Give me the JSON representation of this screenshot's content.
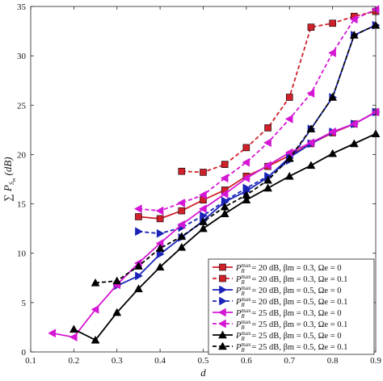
{
  "chart_data": {
    "type": "line",
    "xlabel": "d",
    "ylabel": "∑ P_{S_m} (dB)",
    "xlim": [
      0.1,
      0.9
    ],
    "ylim": [
      0,
      35
    ],
    "xticks": [
      "0.1",
      "0.2",
      "0.3",
      "0.4",
      "0.5",
      "0.6",
      "0.7",
      "0.8",
      "0.9"
    ],
    "yticks": [
      "0",
      "5",
      "10",
      "15",
      "20",
      "25",
      "30",
      "35"
    ],
    "grid": false,
    "legend_position": "bottom-right",
    "series": [
      {
        "name": "P_R^max = 20 dB, β_m = 0.3, Ω_e = 0",
        "color": "#d0202a",
        "line": "solid",
        "marker": "square",
        "x": [
          0.35,
          0.4,
          0.45,
          0.5,
          0.55,
          0.6,
          0.65,
          0.7,
          0.75,
          0.8,
          0.85,
          0.9
        ],
        "y": [
          13.7,
          13.5,
          14.3,
          15.4,
          16.4,
          17.8,
          18.8,
          19.9,
          21.1,
          22.2,
          23.1,
          24.3
        ]
      },
      {
        "name": "P_R^max = 20 dB, β_m = 0.3, Ω_e = 0.1",
        "color": "#d0202a",
        "line": "dashed",
        "marker": "square",
        "x": [
          0.45,
          0.5,
          0.55,
          0.6,
          0.65,
          0.7,
          0.75,
          0.8,
          0.85,
          0.9
        ],
        "y": [
          18.3,
          18.2,
          19.0,
          20.7,
          22.7,
          25.8,
          32.9,
          33.3,
          34.0,
          34.5
        ]
      },
      {
        "name": "P_R^max = 20 dB, β_m = 0.5, Ω_e = 0",
        "color": "#1a22b8",
        "line": "solid",
        "marker": "triangle-right",
        "x": [
          0.3,
          0.35,
          0.4,
          0.45,
          0.5,
          0.55,
          0.6,
          0.65,
          0.7,
          0.75,
          0.8,
          0.85,
          0.9
        ],
        "y": [
          6.7,
          7.7,
          9.9,
          11.6,
          13.3,
          15.2,
          16.3,
          17.7,
          19.7,
          21.1,
          22.3,
          23.1,
          24.3
        ]
      },
      {
        "name": "P_R^max = 20 dB, β_m = 0.5, Ω_e = 0.1",
        "color": "#1a22b8",
        "line": "dashed",
        "marker": "triangle-right",
        "x": [
          0.35,
          0.4,
          0.45,
          0.5,
          0.55,
          0.6,
          0.65,
          0.7,
          0.75,
          0.8,
          0.85,
          0.9
        ],
        "y": [
          12.2,
          12.0,
          12.6,
          13.8,
          15.3,
          16.6,
          17.8,
          19.4,
          22.6,
          25.8,
          32.1,
          33.1
        ]
      },
      {
        "name": "P_R^max = 25 dB, β_m = 0.3, Ω_e = 0",
        "color": "#d417d4",
        "line": "solid",
        "marker": "triangle-left",
        "x": [
          0.15,
          0.2,
          0.25,
          0.3,
          0.35,
          0.4,
          0.45,
          0.5,
          0.55,
          0.6,
          0.65,
          0.7,
          0.75,
          0.8,
          0.85,
          0.9
        ],
        "y": [
          1.9,
          1.5,
          4.3,
          6.8,
          9.0,
          11.0,
          12.9,
          14.5,
          16.0,
          17.6,
          18.9,
          20.2,
          21.2,
          22.3,
          23.1,
          24.3
        ]
      },
      {
        "name": "P_R^max = 25 dB, β_m = 0.3, Ω_e = 0.1",
        "color": "#d417d4",
        "line": "dashed",
        "marker": "triangle-left",
        "x": [
          0.35,
          0.4,
          0.45,
          0.5,
          0.55,
          0.6,
          0.65,
          0.7,
          0.75,
          0.8,
          0.85,
          0.9
        ],
        "y": [
          14.5,
          14.3,
          15.1,
          15.9,
          17.6,
          19.2,
          21.2,
          23.6,
          26.2,
          30.3,
          33.7,
          34.7
        ]
      },
      {
        "name": "P_R^max = 25 dB, β_m = 0.5, Ω_e = 0",
        "color": "#000000",
        "line": "solid",
        "marker": "triangle-up",
        "x": [
          0.2,
          0.25,
          0.3,
          0.35,
          0.4,
          0.45,
          0.5,
          0.55,
          0.6,
          0.65,
          0.7,
          0.75,
          0.8,
          0.85,
          0.9
        ],
        "y": [
          2.3,
          1.2,
          4.0,
          6.4,
          8.6,
          10.6,
          12.5,
          14.0,
          15.4,
          16.6,
          17.8,
          18.9,
          20.1,
          21.1,
          22.1
        ]
      },
      {
        "name": "P_R^max = 25 dB, β_m = 0.5, Ω_e = 0.1",
        "color": "#000000",
        "line": "dashed",
        "marker": "triangle-up",
        "x": [
          0.25,
          0.3,
          0.35,
          0.4,
          0.45,
          0.5,
          0.55,
          0.6,
          0.65,
          0.7,
          0.75,
          0.8,
          0.85,
          0.9
        ],
        "y": [
          7.0,
          7.2,
          8.7,
          10.5,
          11.7,
          13.2,
          14.7,
          15.9,
          17.4,
          19.6,
          22.6,
          25.8,
          32.1,
          33.1
        ]
      }
    ]
  }
}
